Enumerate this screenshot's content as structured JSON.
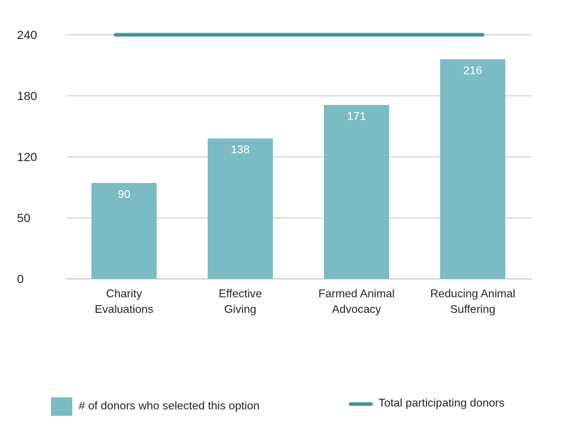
{
  "chart_data": {
    "type": "bar",
    "categories": [
      [
        "Charity",
        "Evaluations"
      ],
      [
        "Effective",
        "Giving"
      ],
      [
        "Farmed Animal",
        "Advocacy"
      ],
      [
        "Reducing Animal",
        "Suffering"
      ]
    ],
    "series": [
      {
        "name": "# of donors who selected this option",
        "type": "bar",
        "values": [
          90,
          138,
          171,
          216
        ],
        "color": "#7bbcc4"
      },
      {
        "name": "Total participating donors",
        "type": "line",
        "value": 240,
        "color": "#3a959e"
      }
    ],
    "yticks": [
      0,
      50,
      120,
      180,
      240
    ],
    "ylim": [
      0,
      240
    ],
    "grid": true,
    "legend_position": "bottom",
    "data_labels": [
      "90",
      "138",
      "171",
      "216"
    ]
  },
  "legend": {
    "bars_label": "# of donors who selected this option",
    "line_label": "Total participating donors"
  },
  "colors": {
    "bar": "#7bbcc4",
    "line": "#3a959e",
    "grid": "#bbbbbb"
  }
}
